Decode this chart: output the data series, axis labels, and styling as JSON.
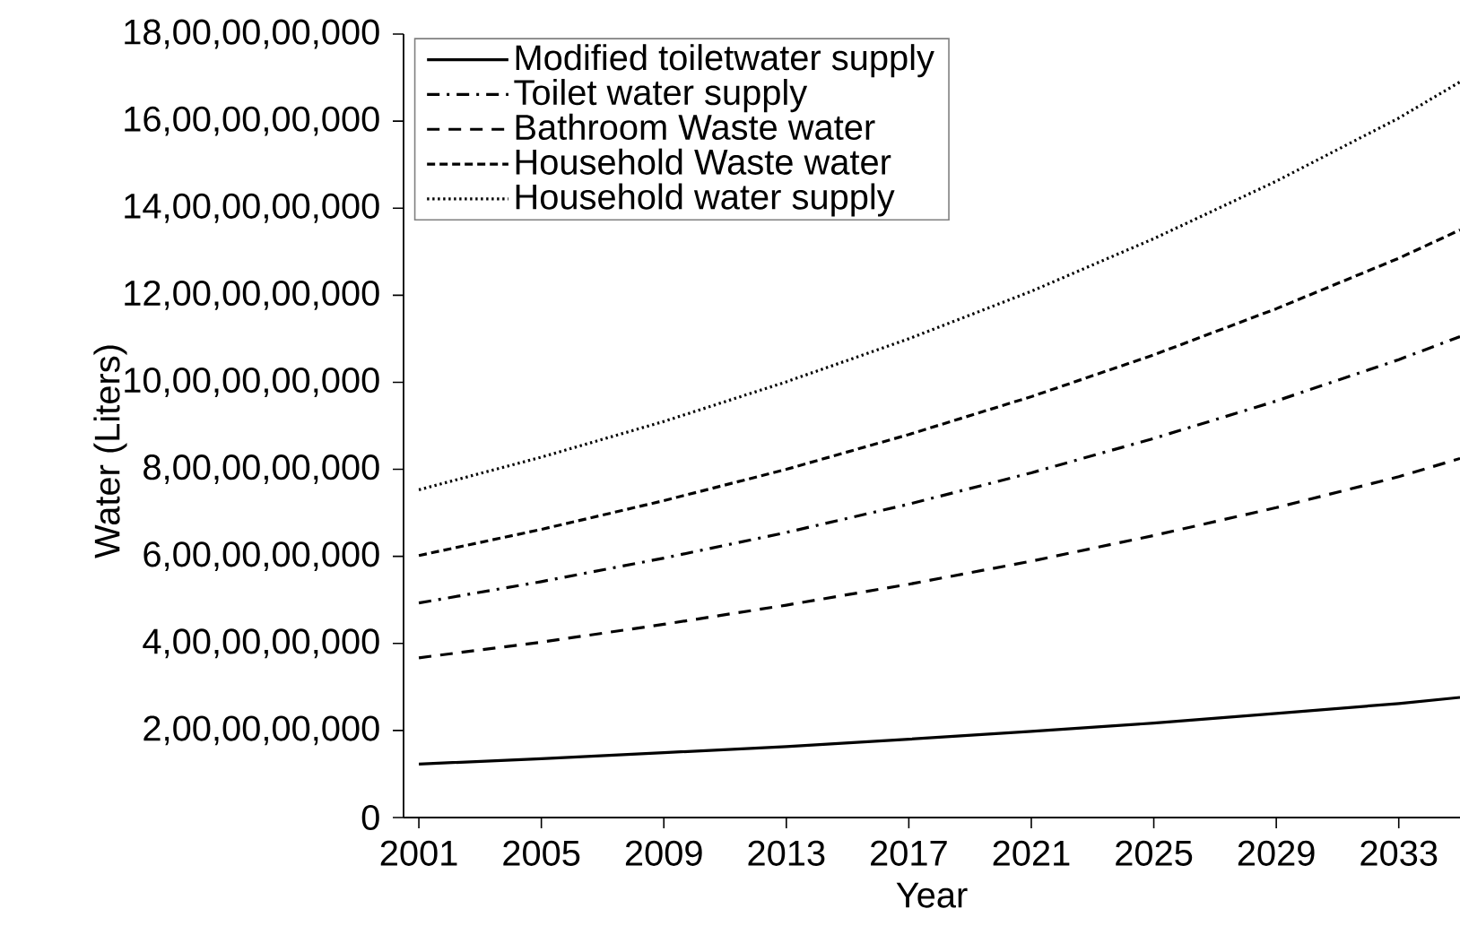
{
  "chart_data": {
    "type": "line",
    "xlabel": "Year",
    "ylabel": "Water (Liters)",
    "x": [
      2001,
      2005,
      2009,
      2013,
      2017,
      2021,
      2025,
      2029,
      2033,
      2035
    ],
    "xlim": [
      2000.5,
      2035
    ],
    "xticks": [
      2001,
      2005,
      2009,
      2013,
      2017,
      2021,
      2025,
      2029,
      2033
    ],
    "ylim": [
      0,
      18000000000
    ],
    "yticks": [
      0,
      {
        "value": 2000000000,
        "label": "2,00,00,00,000"
      },
      {
        "value": 4000000000,
        "label": "4,00,00,00,000"
      },
      {
        "value": 6000000000,
        "label": "6,00,00,00,000"
      },
      {
        "value": 8000000000,
        "label": "8,00,00,00,000"
      },
      {
        "value": 10000000000,
        "label": "10,00,00,00,000"
      },
      {
        "value": 12000000000,
        "label": "12,00,00,00,000"
      },
      {
        "value": 14000000000,
        "label": "14,00,00,00,000"
      },
      {
        "value": 16000000000,
        "label": "16,00,00,00,000"
      },
      {
        "value": 18000000000,
        "label": "18,00,00,00,000"
      }
    ],
    "grid": false,
    "legend": "top left",
    "marker": "none",
    "series": [
      {
        "name": "Modified toiletwater supply",
        "color": "#000000",
        "line_style": "solid",
        "values": [
          1230000000,
          1350000000,
          1490000000,
          1630000000,
          1800000000,
          1980000000,
          2170000000,
          2390000000,
          2620000000,
          2760000000
        ]
      },
      {
        "name": "Toilet water supply",
        "color": "#000000",
        "line_style": "dashdot",
        "values": [
          4930000000,
          5420000000,
          5960000000,
          6550000000,
          7200000000,
          7920000000,
          8710000000,
          9570000000,
          10520000000,
          11050000000
        ]
      },
      {
        "name": "Bathroom Waste water",
        "color": "#000000",
        "line_style": "dashed",
        "values": [
          3670000000,
          4030000000,
          4440000000,
          4880000000,
          5360000000,
          5890000000,
          6480000000,
          7120000000,
          7830000000,
          8250000000
        ]
      },
      {
        "name": "Household Waste water",
        "color": "#000000",
        "line_style": "densely dashed",
        "values": [
          6020000000,
          6620000000,
          7280000000,
          8000000000,
          8800000000,
          9670000000,
          10630000000,
          11690000000,
          12850000000,
          13500000000
        ]
      },
      {
        "name": "Household water supply",
        "color": "#000000",
        "line_style": "dotted",
        "values": [
          7530000000,
          8280000000,
          9100000000,
          10010000000,
          11000000000,
          12090000000,
          13300000000,
          14620000000,
          16070000000,
          16900000000
        ]
      }
    ]
  }
}
